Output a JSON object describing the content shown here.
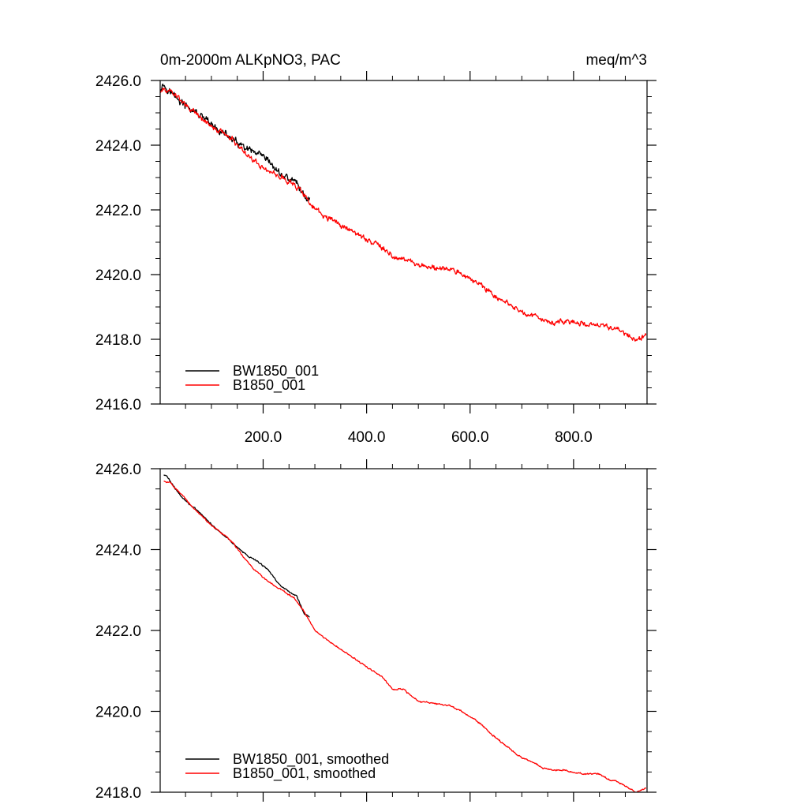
{
  "chart_data": [
    {
      "type": "line",
      "title_left": "0m-2000m ALKpNO3, PAC",
      "title_right": "meq/m^3",
      "xlabel": "",
      "ylabel": "",
      "xlim": [
        1,
        942
      ],
      "ylim": [
        2416.0,
        2426.0
      ],
      "x_ticks": [
        200,
        400,
        600,
        800
      ],
      "x_tick_labels": [
        "200.0",
        "400.0",
        "600.0",
        "800.0"
      ],
      "y_ticks": [
        2416,
        2418,
        2420,
        2422,
        2424,
        2426
      ],
      "y_tick_labels": [
        "2416.0",
        "2418.0",
        "2420.0",
        "2422.0",
        "2424.0",
        "2426.0"
      ],
      "legend_position": "bottom-left",
      "series": [
        {
          "name": "BW1850_001",
          "color": "#000000",
          "noise": 0.09,
          "x": [
            1,
            5,
            15,
            30,
            50,
            70,
            90,
            110,
            130,
            150,
            170,
            190,
            210,
            230,
            250,
            265,
            275,
            280,
            290
          ],
          "values": [
            2425.75,
            2425.9,
            2425.75,
            2425.5,
            2425.2,
            2425.0,
            2424.75,
            2424.5,
            2424.3,
            2424.05,
            2423.85,
            2423.7,
            2423.5,
            2423.15,
            2422.95,
            2422.85,
            2422.55,
            2422.4,
            2422.35
          ]
        },
        {
          "name": "B1850_001",
          "color": "#ff0000",
          "noise": 0.07,
          "x": [
            1,
            20,
            40,
            60,
            80,
            100,
            120,
            140,
            160,
            180,
            200,
            230,
            260,
            280,
            300,
            330,
            360,
            400,
            430,
            450,
            470,
            500,
            530,
            560,
            590,
            620,
            640,
            660,
            680,
            700,
            720,
            740,
            760,
            780,
            800,
            820,
            850,
            870,
            880,
            900,
            920,
            940
          ],
          "values": [
            2425.7,
            2425.7,
            2425.4,
            2425.1,
            2424.85,
            2424.6,
            2424.4,
            2424.2,
            2423.85,
            2423.55,
            2423.3,
            2423.05,
            2422.8,
            2422.45,
            2422.0,
            2421.7,
            2421.45,
            2421.1,
            2420.85,
            2420.55,
            2420.55,
            2420.25,
            2420.2,
            2420.15,
            2419.95,
            2419.7,
            2419.45,
            2419.25,
            2419.05,
            2418.85,
            2418.75,
            2418.6,
            2418.55,
            2418.55,
            2418.5,
            2418.45,
            2418.45,
            2418.3,
            2418.3,
            2418.15,
            2418.0,
            2418.1
          ]
        }
      ]
    },
    {
      "type": "line",
      "title_left": "",
      "title_right": "",
      "xlabel": "",
      "ylabel": "",
      "xlim": [
        1,
        942
      ],
      "ylim": [
        2418.0,
        2426.0
      ],
      "x_ticks": [
        200,
        400,
        600,
        800
      ],
      "x_tick_labels": [],
      "y_ticks": [
        2418,
        2420,
        2422,
        2424,
        2426
      ],
      "y_tick_labels": [
        "2418.0",
        "2420.0",
        "2422.0",
        "2424.0",
        "2426.0"
      ],
      "legend_position": "bottom-left",
      "series": [
        {
          "name": "BW1850_001, smoothed",
          "color": "#000000",
          "noise": 0.015,
          "x": [
            8,
            15,
            30,
            50,
            70,
            90,
            110,
            130,
            150,
            170,
            190,
            210,
            230,
            250,
            265,
            275,
            280,
            290
          ],
          "values": [
            2425.85,
            2425.8,
            2425.5,
            2425.2,
            2425.0,
            2424.75,
            2424.5,
            2424.3,
            2424.05,
            2423.85,
            2423.7,
            2423.5,
            2423.15,
            2422.95,
            2422.85,
            2422.55,
            2422.4,
            2422.35
          ]
        },
        {
          "name": "B1850_001, smoothed",
          "color": "#ff0000",
          "noise": 0.015,
          "x": [
            8,
            20,
            40,
            60,
            80,
            100,
            120,
            140,
            160,
            180,
            200,
            230,
            260,
            280,
            300,
            330,
            360,
            400,
            430,
            450,
            470,
            500,
            530,
            560,
            590,
            620,
            640,
            660,
            680,
            700,
            720,
            740,
            760,
            780,
            800,
            820,
            850,
            870,
            880,
            900,
            920,
            940
          ],
          "values": [
            2425.7,
            2425.65,
            2425.4,
            2425.1,
            2424.85,
            2424.6,
            2424.4,
            2424.2,
            2423.85,
            2423.55,
            2423.3,
            2423.05,
            2422.8,
            2422.45,
            2422.0,
            2421.7,
            2421.45,
            2421.1,
            2420.85,
            2420.55,
            2420.55,
            2420.25,
            2420.2,
            2420.15,
            2419.95,
            2419.7,
            2419.45,
            2419.25,
            2419.05,
            2418.85,
            2418.75,
            2418.6,
            2418.55,
            2418.55,
            2418.5,
            2418.45,
            2418.45,
            2418.3,
            2418.3,
            2418.15,
            2418.0,
            2418.1
          ]
        }
      ]
    }
  ]
}
